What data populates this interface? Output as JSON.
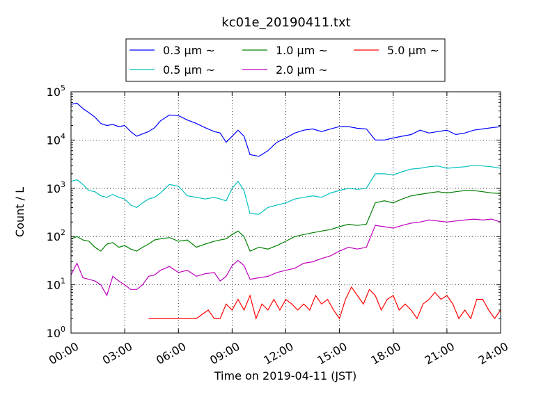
{
  "chart_data": {
    "type": "line",
    "title": "kc01e_20190411.txt",
    "xlabel": "Time on 2019-04-11 (JST)",
    "ylabel": "Count / L",
    "y_scale": "log",
    "ylim": [
      1,
      100000
    ],
    "xlim": [
      "00:00",
      "24:00"
    ],
    "grid": true,
    "legend_position": "top-center",
    "x_ticks": [
      "00:00",
      "03:00",
      "06:00",
      "09:00",
      "12:00",
      "15:00",
      "18:00",
      "21:00",
      "24:00"
    ],
    "y_ticks": [
      {
        "value": 1,
        "base": "10",
        "exp": "0"
      },
      {
        "value": 10,
        "base": "10",
        "exp": "1"
      },
      {
        "value": 100,
        "base": "10",
        "exp": "2"
      },
      {
        "value": 1000,
        "base": "10",
        "exp": "3"
      },
      {
        "value": 10000,
        "base": "10",
        "exp": "4"
      },
      {
        "value": 100000,
        "base": "10",
        "exp": "5"
      }
    ],
    "series": [
      {
        "name": "0.3 μm ~",
        "color": "#0000ff",
        "points": [
          [
            "00:00",
            55000
          ],
          [
            "00:20",
            58000
          ],
          [
            "00:40",
            45000
          ],
          [
            "01:00",
            37000
          ],
          [
            "01:20",
            30000
          ],
          [
            "01:40",
            22000
          ],
          [
            "02:00",
            20000
          ],
          [
            "02:20",
            21000
          ],
          [
            "02:40",
            19000
          ],
          [
            "03:00",
            20000
          ],
          [
            "03:20",
            15000
          ],
          [
            "03:40",
            12000
          ],
          [
            "04:00",
            13500
          ],
          [
            "04:20",
            15000
          ],
          [
            "04:40",
            18000
          ],
          [
            "05:00",
            25000
          ],
          [
            "05:30",
            33000
          ],
          [
            "06:00",
            32000
          ],
          [
            "06:30",
            26000
          ],
          [
            "07:00",
            22000
          ],
          [
            "07:30",
            18000
          ],
          [
            "08:00",
            15000
          ],
          [
            "08:20",
            14000
          ],
          [
            "08:40",
            9000
          ],
          [
            "09:00",
            12000
          ],
          [
            "09:20",
            16000
          ],
          [
            "09:40",
            12000
          ],
          [
            "10:00",
            5000
          ],
          [
            "10:30",
            4600
          ],
          [
            "11:00",
            6000
          ],
          [
            "11:30",
            9000
          ],
          [
            "12:00",
            11000
          ],
          [
            "12:30",
            14000
          ],
          [
            "13:00",
            16000
          ],
          [
            "13:30",
            17000
          ],
          [
            "14:00",
            15000
          ],
          [
            "14:30",
            17000
          ],
          [
            "15:00",
            19000
          ],
          [
            "15:30",
            19000
          ],
          [
            "16:00",
            17500
          ],
          [
            "16:30",
            17000
          ],
          [
            "17:00",
            10000
          ],
          [
            "17:30",
            10000
          ],
          [
            "18:00",
            11000
          ],
          [
            "18:30",
            12000
          ],
          [
            "19:00",
            13000
          ],
          [
            "19:30",
            16000
          ],
          [
            "20:00",
            14000
          ],
          [
            "20:30",
            15000
          ],
          [
            "21:00",
            16000
          ],
          [
            "21:30",
            13000
          ],
          [
            "22:00",
            14000
          ],
          [
            "22:30",
            16000
          ],
          [
            "23:00",
            17000
          ],
          [
            "23:30",
            18000
          ],
          [
            "24:00",
            19000
          ]
        ]
      },
      {
        "name": "0.5 μm ~",
        "color": "#00bfbf",
        "points": [
          [
            "00:00",
            1400
          ],
          [
            "00:20",
            1500
          ],
          [
            "00:40",
            1200
          ],
          [
            "01:00",
            900
          ],
          [
            "01:20",
            850
          ],
          [
            "01:40",
            700
          ],
          [
            "02:00",
            650
          ],
          [
            "02:20",
            750
          ],
          [
            "02:40",
            650
          ],
          [
            "03:00",
            600
          ],
          [
            "03:20",
            450
          ],
          [
            "03:40",
            400
          ],
          [
            "04:00",
            500
          ],
          [
            "04:20",
            600
          ],
          [
            "04:40",
            650
          ],
          [
            "05:00",
            800
          ],
          [
            "05:30",
            1200
          ],
          [
            "06:00",
            1100
          ],
          [
            "06:30",
            700
          ],
          [
            "07:00",
            650
          ],
          [
            "07:30",
            600
          ],
          [
            "08:00",
            650
          ],
          [
            "08:20",
            600
          ],
          [
            "08:40",
            550
          ],
          [
            "09:00",
            1000
          ],
          [
            "09:20",
            1400
          ],
          [
            "09:40",
            900
          ],
          [
            "10:00",
            300
          ],
          [
            "10:30",
            290
          ],
          [
            "11:00",
            400
          ],
          [
            "11:30",
            450
          ],
          [
            "12:00",
            500
          ],
          [
            "12:30",
            600
          ],
          [
            "13:00",
            650
          ],
          [
            "13:30",
            700
          ],
          [
            "14:00",
            650
          ],
          [
            "14:30",
            800
          ],
          [
            "15:00",
            900
          ],
          [
            "15:30",
            1000
          ],
          [
            "16:00",
            950
          ],
          [
            "16:30",
            1000
          ],
          [
            "17:00",
            2000
          ],
          [
            "17:30",
            2000
          ],
          [
            "18:00",
            1900
          ],
          [
            "18:30",
            2200
          ],
          [
            "19:00",
            2500
          ],
          [
            "19:30",
            2600
          ],
          [
            "20:00",
            2800
          ],
          [
            "20:30",
            2900
          ],
          [
            "21:00",
            2600
          ],
          [
            "21:30",
            2700
          ],
          [
            "22:00",
            2800
          ],
          [
            "22:30",
            3000
          ],
          [
            "23:00",
            2900
          ],
          [
            "23:30",
            2800
          ],
          [
            "24:00",
            2600
          ]
        ]
      },
      {
        "name": "1.0 μm ~",
        "color": "#008000",
        "points": [
          [
            "00:00",
            90
          ],
          [
            "00:20",
            100
          ],
          [
            "00:40",
            85
          ],
          [
            "01:00",
            80
          ],
          [
            "01:20",
            60
          ],
          [
            "01:40",
            50
          ],
          [
            "02:00",
            70
          ],
          [
            "02:20",
            75
          ],
          [
            "02:40",
            60
          ],
          [
            "03:00",
            65
          ],
          [
            "03:20",
            55
          ],
          [
            "03:40",
            50
          ],
          [
            "04:00",
            60
          ],
          [
            "04:20",
            70
          ],
          [
            "04:40",
            85
          ],
          [
            "05:00",
            90
          ],
          [
            "05:30",
            95
          ],
          [
            "06:00",
            80
          ],
          [
            "06:30",
            85
          ],
          [
            "07:00",
            60
          ],
          [
            "07:30",
            70
          ],
          [
            "08:00",
            80
          ],
          [
            "08:20",
            85
          ],
          [
            "08:40",
            90
          ],
          [
            "09:00",
            110
          ],
          [
            "09:20",
            130
          ],
          [
            "09:40",
            100
          ],
          [
            "10:00",
            50
          ],
          [
            "10:30",
            60
          ],
          [
            "11:00",
            55
          ],
          [
            "11:30",
            65
          ],
          [
            "12:00",
            80
          ],
          [
            "12:30",
            100
          ],
          [
            "13:00",
            110
          ],
          [
            "13:30",
            120
          ],
          [
            "14:00",
            130
          ],
          [
            "14:30",
            140
          ],
          [
            "15:00",
            160
          ],
          [
            "15:30",
            180
          ],
          [
            "16:00",
            170
          ],
          [
            "16:30",
            180
          ],
          [
            "17:00",
            500
          ],
          [
            "17:30",
            550
          ],
          [
            "18:00",
            500
          ],
          [
            "18:30",
            600
          ],
          [
            "19:00",
            700
          ],
          [
            "19:30",
            750
          ],
          [
            "20:00",
            800
          ],
          [
            "20:30",
            850
          ],
          [
            "21:00",
            800
          ],
          [
            "21:30",
            850
          ],
          [
            "22:00",
            900
          ],
          [
            "22:30",
            900
          ],
          [
            "23:00",
            850
          ],
          [
            "23:30",
            800
          ],
          [
            "24:00",
            780
          ]
        ]
      },
      {
        "name": "2.0 μm ~",
        "color": "#bf00bf",
        "points": [
          [
            "00:00",
            16
          ],
          [
            "00:20",
            28
          ],
          [
            "00:40",
            14
          ],
          [
            "01:00",
            13
          ],
          [
            "01:20",
            12
          ],
          [
            "01:40",
            10
          ],
          [
            "02:00",
            6
          ],
          [
            "02:20",
            15
          ],
          [
            "02:40",
            12
          ],
          [
            "03:00",
            10
          ],
          [
            "03:20",
            8
          ],
          [
            "03:40",
            8
          ],
          [
            "04:00",
            10
          ],
          [
            "04:20",
            15
          ],
          [
            "04:40",
            16
          ],
          [
            "05:00",
            20
          ],
          [
            "05:30",
            24
          ],
          [
            "06:00",
            18
          ],
          [
            "06:30",
            20
          ],
          [
            "07:00",
            15
          ],
          [
            "07:30",
            17
          ],
          [
            "08:00",
            18
          ],
          [
            "08:20",
            12
          ],
          [
            "08:40",
            15
          ],
          [
            "09:00",
            25
          ],
          [
            "09:20",
            32
          ],
          [
            "09:40",
            25
          ],
          [
            "10:00",
            13
          ],
          [
            "10:30",
            14
          ],
          [
            "11:00",
            15
          ],
          [
            "11:30",
            18
          ],
          [
            "12:00",
            20
          ],
          [
            "12:30",
            22
          ],
          [
            "13:00",
            28
          ],
          [
            "13:30",
            30
          ],
          [
            "14:00",
            35
          ],
          [
            "14:30",
            40
          ],
          [
            "15:00",
            50
          ],
          [
            "15:30",
            60
          ],
          [
            "16:00",
            55
          ],
          [
            "16:30",
            60
          ],
          [
            "17:00",
            170
          ],
          [
            "17:30",
            160
          ],
          [
            "18:00",
            150
          ],
          [
            "18:30",
            170
          ],
          [
            "19:00",
            190
          ],
          [
            "19:30",
            200
          ],
          [
            "20:00",
            220
          ],
          [
            "20:30",
            210
          ],
          [
            "21:00",
            200
          ],
          [
            "21:30",
            210
          ],
          [
            "22:00",
            220
          ],
          [
            "22:30",
            230
          ],
          [
            "23:00",
            220
          ],
          [
            "23:30",
            230
          ],
          [
            "24:00",
            200
          ]
        ]
      },
      {
        "name": "5.0 μm ~",
        "color": "#ff0000",
        "points": [
          [
            "04:20",
            2
          ],
          [
            "06:40",
            2
          ],
          [
            "07:00",
            2
          ],
          [
            "07:40",
            3
          ],
          [
            "08:00",
            2
          ],
          [
            "08:20",
            2
          ],
          [
            "08:40",
            4
          ],
          [
            "09:00",
            3
          ],
          [
            "09:20",
            5
          ],
          [
            "09:40",
            3
          ],
          [
            "10:00",
            6
          ],
          [
            "10:20",
            2
          ],
          [
            "10:40",
            4
          ],
          [
            "11:00",
            3
          ],
          [
            "11:20",
            5
          ],
          [
            "11:40",
            3
          ],
          [
            "12:00",
            5
          ],
          [
            "12:20",
            4
          ],
          [
            "12:40",
            3
          ],
          [
            "13:00",
            4
          ],
          [
            "13:20",
            3
          ],
          [
            "13:40",
            6
          ],
          [
            "14:00",
            4
          ],
          [
            "14:20",
            5
          ],
          [
            "14:40",
            3
          ],
          [
            "15:00",
            2
          ],
          [
            "15:20",
            5
          ],
          [
            "15:40",
            9
          ],
          [
            "16:00",
            6
          ],
          [
            "16:20",
            4
          ],
          [
            "16:40",
            8
          ],
          [
            "17:00",
            6
          ],
          [
            "17:20",
            3
          ],
          [
            "17:40",
            5
          ],
          [
            "18:00",
            6
          ],
          [
            "18:20",
            3
          ],
          [
            "18:40",
            4
          ],
          [
            "19:00",
            3
          ],
          [
            "19:20",
            2
          ],
          [
            "19:40",
            4
          ],
          [
            "20:00",
            5
          ],
          [
            "20:20",
            7
          ],
          [
            "20:40",
            5
          ],
          [
            "21:00",
            6
          ],
          [
            "21:20",
            4
          ],
          [
            "21:40",
            2
          ],
          [
            "22:00",
            3
          ],
          [
            "22:20",
            2
          ],
          [
            "22:40",
            5
          ],
          [
            "23:00",
            5
          ],
          [
            "23:20",
            3
          ],
          [
            "23:40",
            2
          ],
          [
            "24:00",
            3
          ]
        ]
      }
    ]
  }
}
